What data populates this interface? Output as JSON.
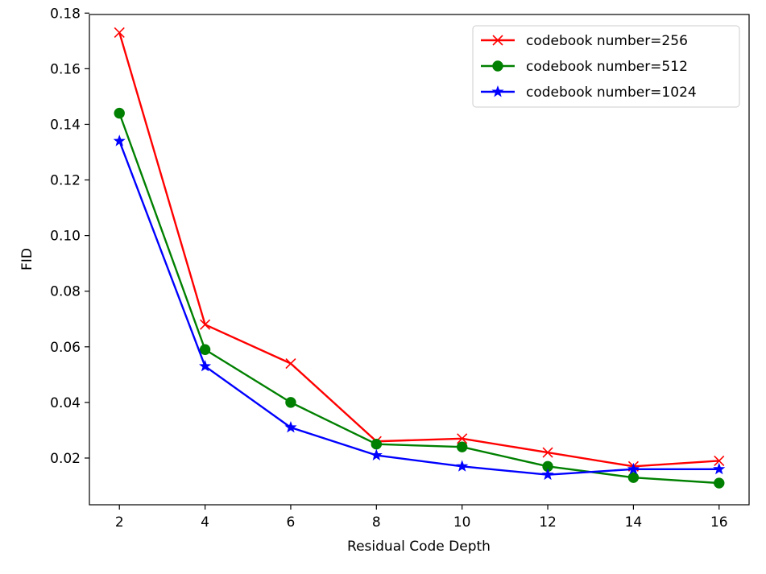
{
  "chart_data": {
    "type": "line",
    "title": "",
    "xlabel": "Residual Code Depth",
    "ylabel": "FID",
    "x": [
      2,
      4,
      6,
      8,
      10,
      12,
      14,
      16
    ],
    "xlim": [
      1.3,
      16.7
    ],
    "ylim": [
      0.0032,
      0.1795
    ],
    "xticks": [
      2,
      4,
      6,
      8,
      10,
      12,
      14,
      16
    ],
    "xtick_labels": [
      "2",
      "4",
      "6",
      "8",
      "10",
      "12",
      "14",
      "16"
    ],
    "yticks": [
      0.02,
      0.04,
      0.06,
      0.08,
      0.1,
      0.12,
      0.14,
      0.16,
      0.18
    ],
    "ytick_labels": [
      "0.02",
      "0.04",
      "0.06",
      "0.08",
      "0.10",
      "0.12",
      "0.14",
      "0.16",
      "0.18"
    ],
    "grid": false,
    "legend_position": "top-right",
    "series": [
      {
        "name": "codebook number=256",
        "color": "#ff0000",
        "marker": "x",
        "values": [
          0.173,
          0.068,
          0.054,
          0.026,
          0.027,
          0.022,
          0.017,
          0.019
        ]
      },
      {
        "name": "codebook number=512",
        "color": "#008000",
        "marker": "circle",
        "values": [
          0.144,
          0.059,
          0.04,
          0.025,
          0.024,
          0.017,
          0.013,
          0.011
        ]
      },
      {
        "name": "codebook number=1024",
        "color": "#0000ff",
        "marker": "star",
        "values": [
          0.134,
          0.053,
          0.031,
          0.021,
          0.017,
          0.014,
          0.016,
          0.016
        ]
      }
    ]
  }
}
